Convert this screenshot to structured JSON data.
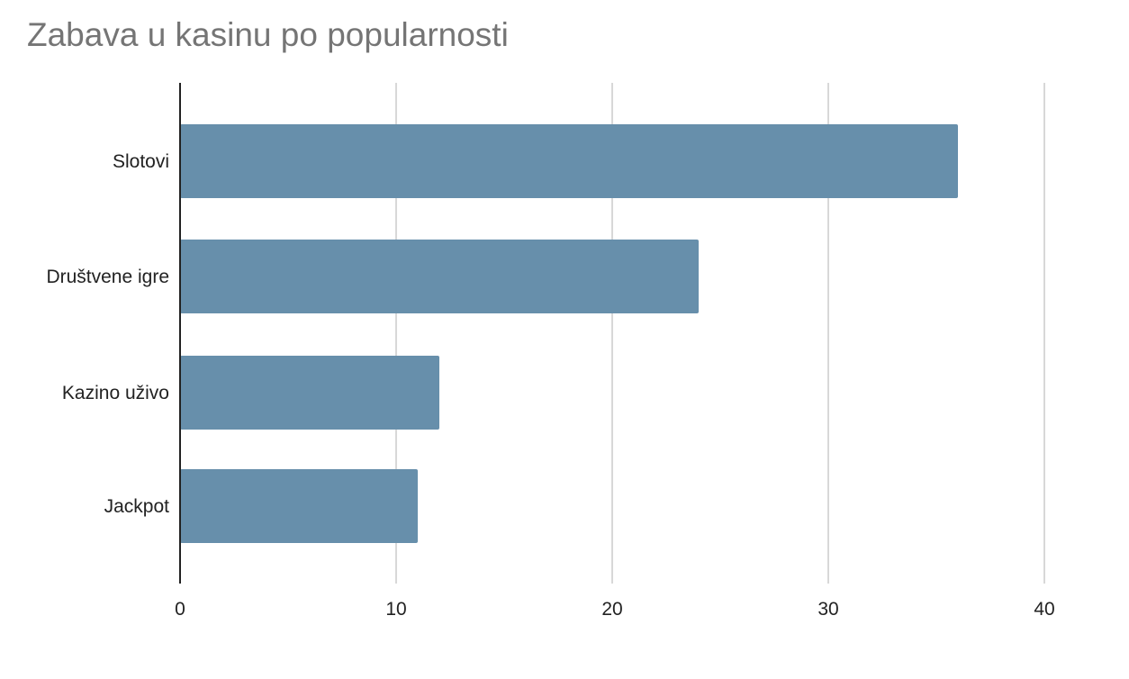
{
  "chart_data": {
    "type": "bar",
    "orientation": "horizontal",
    "title": "Zabava u kasinu po popularnosti",
    "categories": [
      "Slotovi",
      "Društvene igre",
      "Kazino uživo",
      "Jackpot"
    ],
    "values": [
      36,
      24,
      12,
      11
    ],
    "xlim": [
      0,
      40
    ],
    "xticks": [
      "0",
      "10",
      "20",
      "30",
      "40"
    ],
    "grid": true,
    "legend": "none",
    "colors": {
      "bar": "#678fab",
      "grid": "#cccccc",
      "axis": "#222222",
      "title": "#757575"
    }
  }
}
